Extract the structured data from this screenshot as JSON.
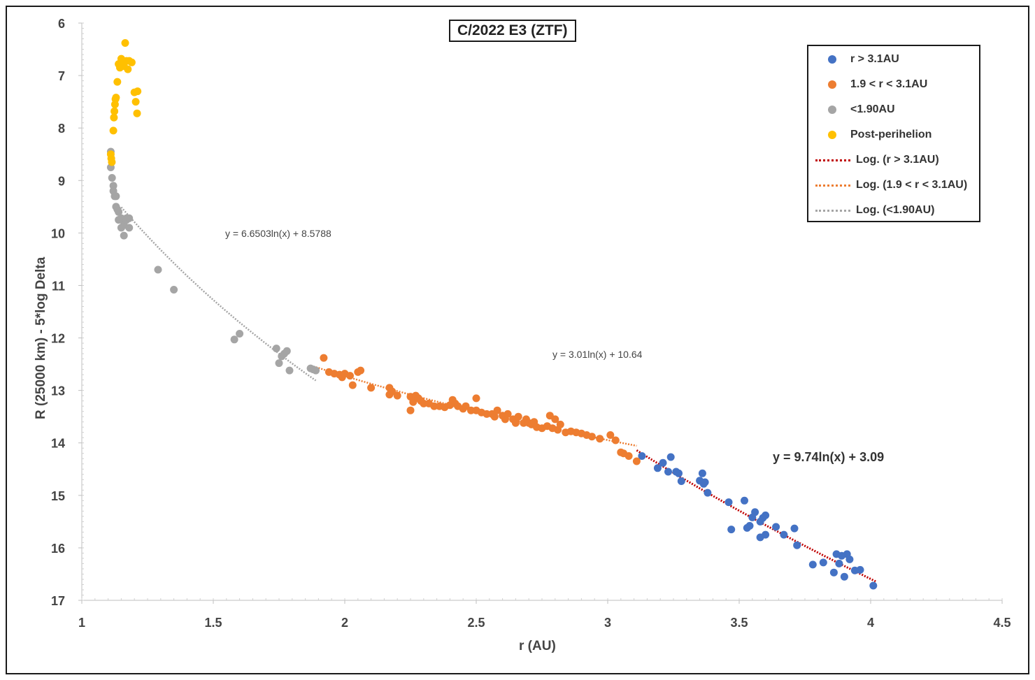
{
  "chart_data": {
    "type": "scatter",
    "title": "C/2022 E3 (ZTF)",
    "xlabel": "r (AU)",
    "ylabel": "R (25000 km) - 5*log Delta",
    "xlim": [
      1,
      4.5
    ],
    "ylim": [
      6,
      17
    ],
    "y_inverted": true,
    "xticks": [
      "1",
      "1.5",
      "2",
      "2.5",
      "3",
      "3.5",
      "4",
      "4.5"
    ],
    "yticks": [
      "6",
      "7",
      "8",
      "9",
      "10",
      "11",
      "12",
      "13",
      "14",
      "15",
      "16",
      "17"
    ],
    "legend_position": "top-right",
    "series": [
      {
        "name": "r > 3.1AU",
        "color": "#4472C4",
        "x": [
          3.13,
          3.19,
          3.21,
          3.23,
          3.24,
          3.26,
          3.27,
          3.28,
          3.35,
          3.36,
          3.365,
          3.37,
          3.38,
          3.46,
          3.47,
          3.52,
          3.53,
          3.54,
          3.55,
          3.56,
          3.58,
          3.58,
          3.59,
          3.6,
          3.6,
          3.64,
          3.67,
          3.71,
          3.72,
          3.78,
          3.82,
          3.86,
          3.87,
          3.88,
          3.89,
          3.9,
          3.91,
          3.92,
          3.94,
          3.96,
          4.01
        ],
        "y": [
          14.25,
          14.48,
          14.38,
          14.55,
          14.27,
          14.55,
          14.58,
          14.73,
          14.72,
          14.58,
          14.78,
          14.75,
          14.95,
          15.13,
          15.65,
          15.1,
          15.62,
          15.58,
          15.42,
          15.32,
          15.8,
          15.5,
          15.43,
          15.38,
          15.75,
          15.6,
          15.75,
          15.63,
          15.95,
          16.32,
          16.28,
          16.47,
          16.12,
          16.3,
          16.15,
          16.55,
          16.12,
          16.22,
          16.43,
          16.42,
          16.72
        ]
      },
      {
        "name": "1.9 < r < 3.1AU",
        "color": "#ED7D31",
        "x": [
          1.92,
          1.94,
          1.96,
          1.98,
          1.99,
          2.0,
          2.02,
          2.03,
          2.05,
          2.06,
          2.1,
          2.17,
          2.17,
          2.18,
          2.2,
          2.25,
          2.25,
          2.26,
          2.27,
          2.28,
          2.29,
          2.3,
          2.32,
          2.34,
          2.36,
          2.38,
          2.4,
          2.41,
          2.42,
          2.43,
          2.45,
          2.46,
          2.48,
          2.5,
          2.5,
          2.52,
          2.54,
          2.56,
          2.57,
          2.58,
          2.6,
          2.61,
          2.62,
          2.64,
          2.65,
          2.66,
          2.68,
          2.69,
          2.7,
          2.71,
          2.72,
          2.73,
          2.75,
          2.77,
          2.78,
          2.79,
          2.8,
          2.81,
          2.82,
          2.84,
          2.86,
          2.88,
          2.9,
          2.92,
          2.94,
          2.97,
          3.01,
          3.03,
          3.05,
          3.06,
          3.08,
          3.11
        ],
        "y": [
          12.38,
          12.65,
          12.68,
          12.7,
          12.75,
          12.68,
          12.72,
          12.9,
          12.65,
          12.62,
          12.95,
          12.95,
          13.08,
          13.02,
          13.1,
          13.12,
          13.38,
          13.22,
          13.1,
          13.15,
          13.2,
          13.25,
          13.25,
          13.3,
          13.3,
          13.32,
          13.28,
          13.18,
          13.25,
          13.3,
          13.35,
          13.3,
          13.38,
          13.38,
          13.15,
          13.42,
          13.45,
          13.45,
          13.5,
          13.38,
          13.48,
          13.55,
          13.45,
          13.55,
          13.62,
          13.5,
          13.62,
          13.55,
          13.62,
          13.65,
          13.6,
          13.7,
          13.72,
          13.68,
          13.48,
          13.72,
          13.55,
          13.75,
          13.65,
          13.8,
          13.78,
          13.8,
          13.82,
          13.85,
          13.88,
          13.92,
          13.85,
          13.95,
          14.18,
          14.2,
          14.25,
          14.35
        ]
      },
      {
        "name": "<1.90AU",
        "color": "#A5A5A5",
        "x": [
          1.11,
          1.11,
          1.115,
          1.12,
          1.12,
          1.125,
          1.13,
          1.13,
          1.135,
          1.14,
          1.14,
          1.15,
          1.15,
          1.16,
          1.16,
          1.17,
          1.17,
          1.18,
          1.18,
          1.29,
          1.35,
          1.58,
          1.6,
          1.74,
          1.75,
          1.76,
          1.77,
          1.78,
          1.79,
          1.87,
          1.88,
          1.89
        ],
        "y": [
          8.45,
          8.75,
          8.95,
          9.1,
          9.2,
          9.3,
          9.3,
          9.5,
          9.55,
          9.6,
          9.75,
          9.9,
          9.72,
          10.05,
          9.85,
          9.75,
          9.72,
          9.9,
          9.72,
          10.7,
          11.08,
          12.03,
          11.92,
          12.2,
          12.48,
          12.35,
          12.3,
          12.25,
          12.62,
          12.58,
          12.6,
          12.62
        ]
      },
      {
        "name": "Post-perihelion",
        "color": "#FFC000",
        "x": [
          1.11,
          1.112,
          1.114,
          1.12,
          1.122,
          1.124,
          1.126,
          1.128,
          1.13,
          1.135,
          1.14,
          1.145,
          1.15,
          1.155,
          1.16,
          1.165,
          1.17,
          1.175,
          1.18,
          1.19,
          1.2,
          1.205,
          1.21,
          1.212
        ],
        "y": [
          8.5,
          8.58,
          8.65,
          8.05,
          7.8,
          7.68,
          7.55,
          7.45,
          7.42,
          7.12,
          6.78,
          6.85,
          6.68,
          6.75,
          6.82,
          6.38,
          6.72,
          6.88,
          6.72,
          6.75,
          7.32,
          7.5,
          7.72,
          7.3
        ]
      }
    ],
    "trendlines": [
      {
        "name": "Log. (r > 3.1AU)",
        "color": "#C00000",
        "a": 9.74,
        "b": 3.09,
        "x_from": 3.11,
        "x_to": 4.02,
        "equation": "y = 9.74ln(x) + 3.09"
      },
      {
        "name": "Log. (1.9 < r < 3.1AU)",
        "color": "#ED7D31",
        "a": 3.01,
        "b": 10.64,
        "x_from": 1.89,
        "x_to": 3.11,
        "equation": "y = 3.01ln(x) + 10.64"
      },
      {
        "name": "Log. (<1.90AU)",
        "color": "#A5A5A5",
        "a": 6.6503,
        "b": 8.5788,
        "x_from": 1.15,
        "x_to": 1.89,
        "equation": "y = 6.6503ln(x) + 8.5788"
      }
    ]
  }
}
